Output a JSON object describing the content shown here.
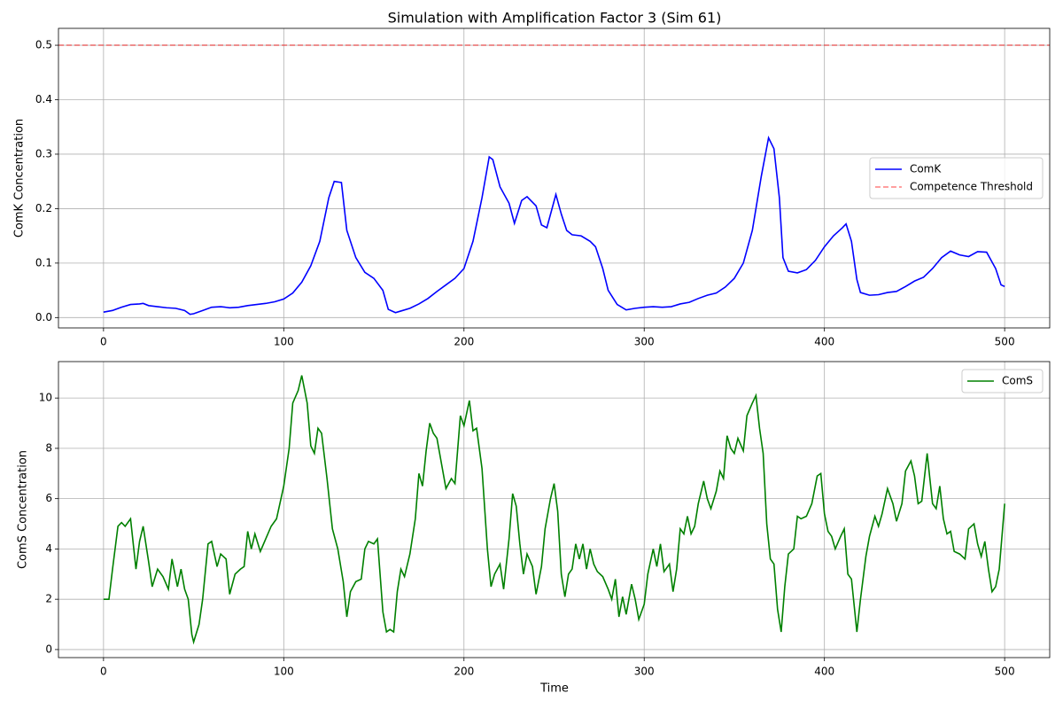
{
  "chart_data": [
    {
      "type": "line",
      "title": "Simulation with Amplification Factor 3 (Sim 61)",
      "y_label": "ComK Concentration",
      "x": [
        0,
        5,
        10,
        15,
        20,
        22,
        25,
        30,
        35,
        40,
        45,
        48,
        50,
        55,
        60,
        65,
        70,
        75,
        80,
        85,
        90,
        95,
        100,
        105,
        110,
        115,
        120,
        125,
        128,
        132,
        135,
        140,
        145,
        150,
        155,
        158,
        162,
        165,
        170,
        175,
        180,
        185,
        190,
        195,
        200,
        205,
        210,
        214,
        216,
        220,
        225,
        228,
        232,
        235,
        240,
        243,
        246,
        251,
        254,
        257,
        260,
        265,
        270,
        273,
        277,
        280,
        285,
        290,
        295,
        300,
        305,
        310,
        315,
        320,
        325,
        330,
        335,
        340,
        345,
        350,
        355,
        360,
        365,
        369,
        372,
        375,
        377,
        380,
        385,
        390,
        395,
        400,
        405,
        410,
        412,
        415,
        418,
        420,
        425,
        430,
        435,
        440,
        445,
        450,
        455,
        460,
        465,
        470,
        475,
        480,
        485,
        490,
        495,
        498,
        500
      ],
      "series": [
        {
          "name": "ComK",
          "color": "#0000ff",
          "values": [
            0.01,
            0.013,
            0.019,
            0.024,
            0.025,
            0.026,
            0.022,
            0.02,
            0.018,
            0.017,
            0.013,
            0.006,
            0.007,
            0.013,
            0.019,
            0.02,
            0.018,
            0.019,
            0.022,
            0.024,
            0.026,
            0.029,
            0.034,
            0.045,
            0.065,
            0.095,
            0.14,
            0.22,
            0.25,
            0.248,
            0.16,
            0.11,
            0.083,
            0.072,
            0.05,
            0.015,
            0.009,
            0.012,
            0.017,
            0.025,
            0.035,
            0.048,
            0.06,
            0.072,
            0.09,
            0.14,
            0.22,
            0.295,
            0.29,
            0.24,
            0.21,
            0.173,
            0.215,
            0.222,
            0.205,
            0.17,
            0.165,
            0.226,
            0.19,
            0.16,
            0.152,
            0.15,
            0.14,
            0.13,
            0.09,
            0.05,
            0.024,
            0.014,
            0.017,
            0.019,
            0.02,
            0.019,
            0.02,
            0.025,
            0.028,
            0.035,
            0.041,
            0.045,
            0.056,
            0.072,
            0.1,
            0.16,
            0.26,
            0.33,
            0.31,
            0.22,
            0.11,
            0.085,
            0.082,
            0.088,
            0.105,
            0.13,
            0.15,
            0.165,
            0.172,
            0.14,
            0.07,
            0.046,
            0.041,
            0.042,
            0.046,
            0.048,
            0.057,
            0.067,
            0.074,
            0.09,
            0.11,
            0.122,
            0.115,
            0.112,
            0.121,
            0.12,
            0.09,
            0.06,
            0.057
          ]
        }
      ],
      "threshold": {
        "name": "Competence Threshold",
        "value": 0.5,
        "color": "#ff0000"
      },
      "xlim": [
        -25,
        525
      ],
      "ylim": [
        -0.019,
        0.531
      ],
      "xticks": [
        0,
        100,
        200,
        300,
        400,
        500
      ],
      "yticks": [
        {
          "value": 0,
          "label": "0.0"
        },
        0.1,
        0.2,
        0.3,
        0.4,
        0.5
      ],
      "grid": true,
      "legend": "center right"
    },
    {
      "type": "line",
      "x_label": "Time",
      "y_label": "ComS Concentration",
      "x": [
        0,
        3,
        5,
        8,
        10,
        12,
        15,
        18,
        20,
        22,
        25,
        27,
        30,
        33,
        36,
        38,
        41,
        43,
        45,
        47,
        49,
        50,
        53,
        55,
        58,
        60,
        63,
        65,
        68,
        70,
        73,
        76,
        78,
        80,
        82,
        84,
        87,
        90,
        93,
        96,
        100,
        103,
        105,
        108,
        110,
        113,
        115,
        117,
        119,
        121,
        124,
        127,
        130,
        133,
        135,
        137,
        140,
        143,
        145,
        147,
        150,
        152,
        155,
        157,
        159,
        161,
        163,
        165,
        167,
        170,
        173,
        175,
        177,
        179,
        181,
        183,
        185,
        188,
        190,
        193,
        195,
        198,
        200,
        203,
        205,
        207,
        210,
        213,
        215,
        217,
        220,
        222,
        225,
        227,
        229,
        231,
        233,
        235,
        238,
        240,
        243,
        245,
        248,
        250,
        252,
        254,
        256,
        258,
        260,
        262,
        264,
        266,
        268,
        270,
        272,
        274,
        277,
        280,
        282,
        284,
        286,
        288,
        290,
        293,
        295,
        297,
        300,
        302,
        305,
        307,
        309,
        311,
        314,
        316,
        318,
        320,
        322,
        324,
        326,
        328,
        330,
        333,
        335,
        337,
        340,
        342,
        344,
        346,
        348,
        350,
        352,
        355,
        357,
        360,
        362,
        364,
        366,
        368,
        370,
        372,
        374,
        376,
        378,
        380,
        383,
        385,
        387,
        390,
        393,
        396,
        398,
        400,
        402,
        404,
        406,
        409,
        411,
        413,
        415,
        418,
        420,
        423,
        425,
        428,
        430,
        432,
        435,
        438,
        440,
        443,
        445,
        448,
        450,
        452,
        454,
        457,
        460,
        462,
        464,
        466,
        468,
        470,
        472,
        475,
        478,
        480,
        483,
        485,
        487,
        489,
        491,
        493,
        495,
        497,
        500
      ],
      "series": [
        {
          "name": "ComS",
          "color": "#008000",
          "values": [
            2.0,
            2.0,
            3.2,
            4.9,
            5.05,
            4.9,
            5.2,
            3.2,
            4.3,
            4.9,
            3.5,
            2.5,
            3.2,
            2.9,
            2.4,
            3.6,
            2.5,
            3.2,
            2.4,
            2.0,
            0.6,
            0.3,
            1.0,
            2.0,
            4.2,
            4.3,
            3.3,
            3.8,
            3.6,
            2.2,
            3.0,
            3.2,
            3.3,
            4.7,
            4.0,
            4.6,
            3.9,
            4.4,
            4.9,
            5.2,
            6.5,
            8.0,
            9.8,
            10.3,
            10.9,
            9.8,
            8.1,
            7.8,
            8.8,
            8.6,
            6.8,
            4.8,
            4.0,
            2.7,
            1.3,
            2.3,
            2.7,
            2.8,
            4.0,
            4.3,
            4.2,
            4.4,
            1.5,
            0.7,
            0.8,
            0.7,
            2.3,
            3.2,
            2.9,
            3.8,
            5.2,
            7.0,
            6.5,
            7.9,
            9.0,
            8.6,
            8.4,
            7.2,
            6.4,
            6.8,
            6.6,
            9.3,
            8.9,
            9.9,
            8.7,
            8.8,
            7.2,
            4.0,
            2.5,
            3.0,
            3.4,
            2.4,
            4.4,
            6.2,
            5.7,
            4.2,
            3.0,
            3.8,
            3.3,
            2.2,
            3.3,
            4.8,
            6.0,
            6.6,
            5.5,
            3.0,
            2.1,
            3.0,
            3.2,
            4.2,
            3.6,
            4.2,
            3.2,
            4.0,
            3.4,
            3.1,
            2.9,
            2.4,
            2.0,
            2.8,
            1.3,
            2.1,
            1.4,
            2.6,
            2.0,
            1.2,
            1.8,
            3.0,
            4.0,
            3.3,
            4.2,
            3.1,
            3.4,
            2.3,
            3.2,
            4.8,
            4.6,
            5.3,
            4.6,
            4.9,
            5.8,
            6.7,
            6.0,
            5.6,
            6.3,
            7.1,
            6.8,
            8.5,
            8.0,
            7.8,
            8.4,
            7.9,
            9.3,
            9.8,
            10.1,
            8.8,
            7.8,
            5.0,
            3.6,
            3.4,
            1.6,
            0.7,
            2.5,
            3.8,
            4.0,
            5.3,
            5.2,
            5.3,
            5.8,
            6.9,
            7.0,
            5.4,
            4.7,
            4.5,
            4.0,
            4.5,
            4.8,
            3.0,
            2.8,
            0.7,
            2.0,
            3.7,
            4.5,
            5.3,
            4.9,
            5.4,
            6.4,
            5.8,
            5.1,
            5.8,
            7.1,
            7.5,
            6.9,
            5.8,
            5.9,
            7.8,
            5.8,
            5.6,
            6.5,
            5.2,
            4.6,
            4.7,
            3.9,
            3.8,
            3.6,
            4.8,
            5.0,
            4.2,
            3.7,
            4.3,
            3.2,
            2.3,
            2.5,
            3.2,
            5.8
          ]
        }
      ],
      "xlim": [
        -25,
        525
      ],
      "ylim": [
        -0.32,
        11.45
      ],
      "xticks": [
        0,
        100,
        200,
        300,
        400,
        500
      ],
      "yticks": [
        0,
        2,
        4,
        6,
        8,
        10
      ],
      "grid": true,
      "legend": "upper right"
    }
  ]
}
